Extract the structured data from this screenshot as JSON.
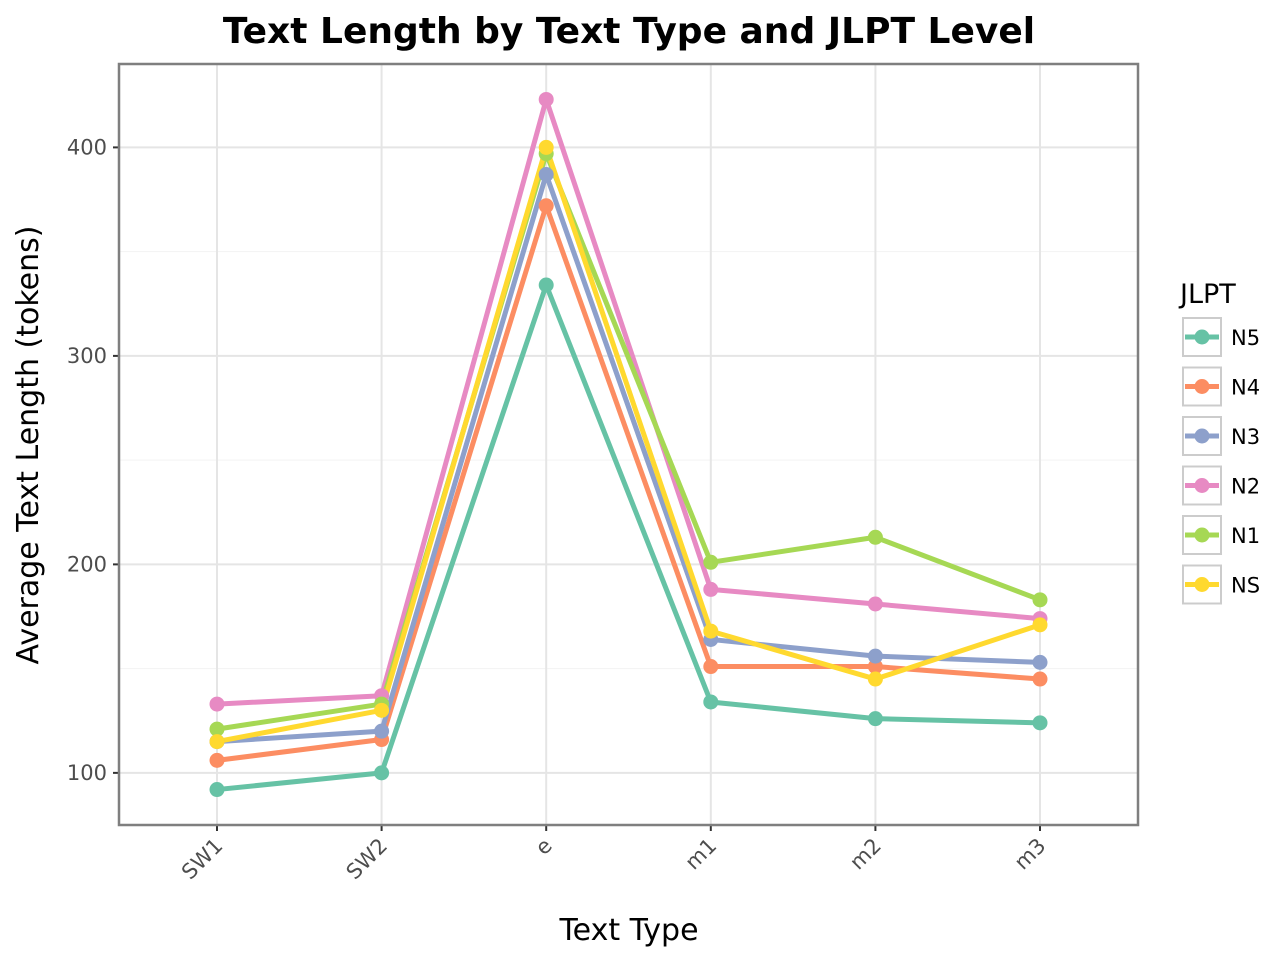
{
  "chart_data": {
    "type": "line",
    "title": "Text Length by Text Type and JLPT Level",
    "xlabel": "Text Type",
    "ylabel": "Average Text Length (tokens)",
    "categories": [
      "SW1",
      "SW2",
      "e",
      "m1",
      "m2",
      "m3"
    ],
    "ylim": [
      75,
      440
    ],
    "yticks": [
      100,
      200,
      300,
      400
    ],
    "grid": true,
    "legend": {
      "title": "JLPT",
      "placement": "right"
    },
    "series": [
      {
        "name": "N5",
        "color": "#66c2a5",
        "values": [
          92,
          100,
          334,
          134,
          126,
          124
        ]
      },
      {
        "name": "N4",
        "color": "#fc8d62",
        "values": [
          106,
          116,
          372,
          151,
          151,
          145
        ]
      },
      {
        "name": "N3",
        "color": "#8da0cb",
        "values": [
          115,
          120,
          387,
          164,
          156,
          153
        ]
      },
      {
        "name": "N2",
        "color": "#e78ac3",
        "values": [
          133,
          137,
          423,
          188,
          181,
          174
        ]
      },
      {
        "name": "N1",
        "color": "#a6d854",
        "values": [
          121,
          133,
          397,
          201,
          213,
          183
        ]
      },
      {
        "name": "NS",
        "color": "#ffd92f",
        "values": [
          115,
          130,
          400,
          168,
          145,
          171
        ]
      }
    ]
  }
}
